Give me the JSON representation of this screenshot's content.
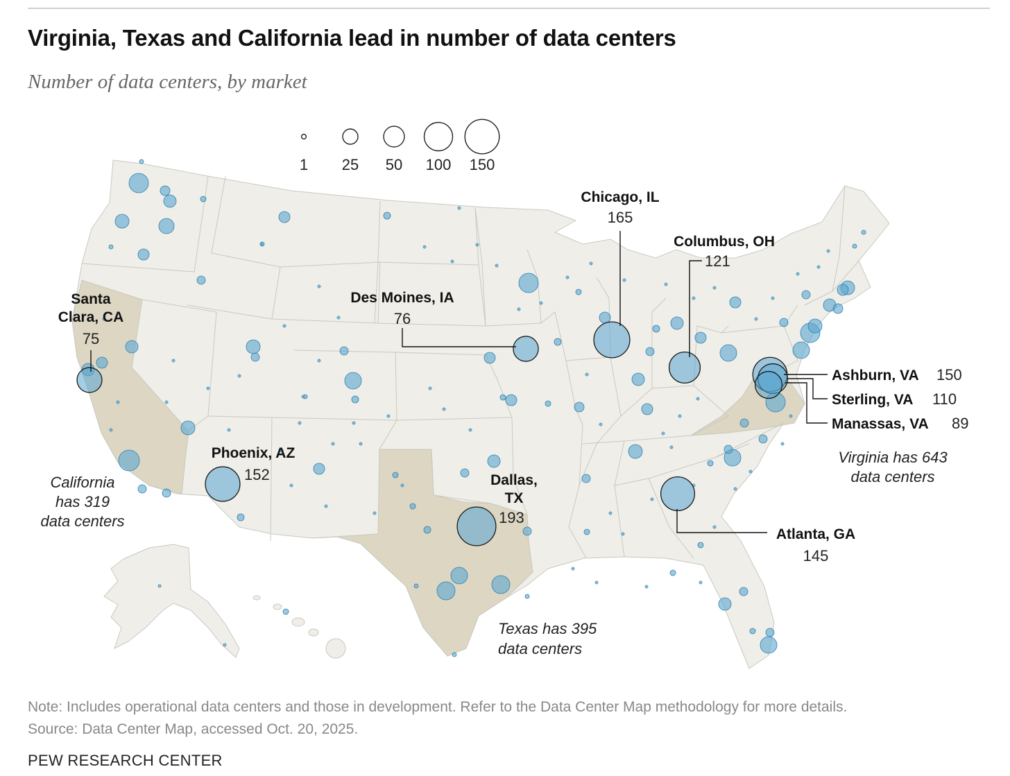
{
  "header": {
    "title": "Virginia, Texas and California lead in number of data centers",
    "subtitle": "Number of data centers, by market"
  },
  "legend": {
    "items": [
      {
        "label": "1",
        "value": 1
      },
      {
        "label": "25",
        "value": 25
      },
      {
        "label": "50",
        "value": 50
      },
      {
        "label": "100",
        "value": 100
      },
      {
        "label": "150",
        "value": 150
      }
    ]
  },
  "markets": [
    {
      "name": "Santa Clara, CA",
      "name_lines": [
        "Santa",
        "Clara, CA"
      ],
      "value": 75,
      "value_label": "75"
    },
    {
      "name": "Des Moines, IA",
      "value": 76,
      "value_label": "76"
    },
    {
      "name": "Chicago, IL",
      "value": 165,
      "value_label": "165"
    },
    {
      "name": "Columbus, OH",
      "value": 121,
      "value_label": "121"
    },
    {
      "name": "Ashburn, VA",
      "value": 150,
      "value_label": "150"
    },
    {
      "name": "Sterling, VA",
      "value": 110,
      "value_label": "110"
    },
    {
      "name": "Manassas, VA",
      "value": 89,
      "value_label": "89"
    },
    {
      "name": "Phoenix, AZ",
      "value": 152,
      "value_label": "152"
    },
    {
      "name": "Dallas, TX",
      "name_lines": [
        "Dallas,",
        "TX"
      ],
      "value": 193,
      "value_label": "193"
    },
    {
      "name": "Atlanta, GA",
      "value": 145,
      "value_label": "145"
    }
  ],
  "state_notes": [
    {
      "state": "California",
      "lines": [
        "California",
        "has 319",
        "data centers"
      ]
    },
    {
      "state": "Texas",
      "lines": [
        "Texas has 395",
        "data centers"
      ]
    },
    {
      "state": "Virginia",
      "lines": [
        "Virginia has 643",
        "data centers"
      ]
    }
  ],
  "colors": {
    "bubble_fill": "#5aa6d1",
    "bubble_stroke": "#2f7fae",
    "land": "#efeee8",
    "highlight_state": "#dcd6c3",
    "border": "#c9c8c0"
  },
  "footer": {
    "note": "Note: Includes operational data centers and those in development. Refer to the Data Center Map methodology for more details.",
    "source": "Source: Data Center Map, accessed Oct. 20, 2025.",
    "brand": "PEW RESEARCH CENTER"
  }
}
